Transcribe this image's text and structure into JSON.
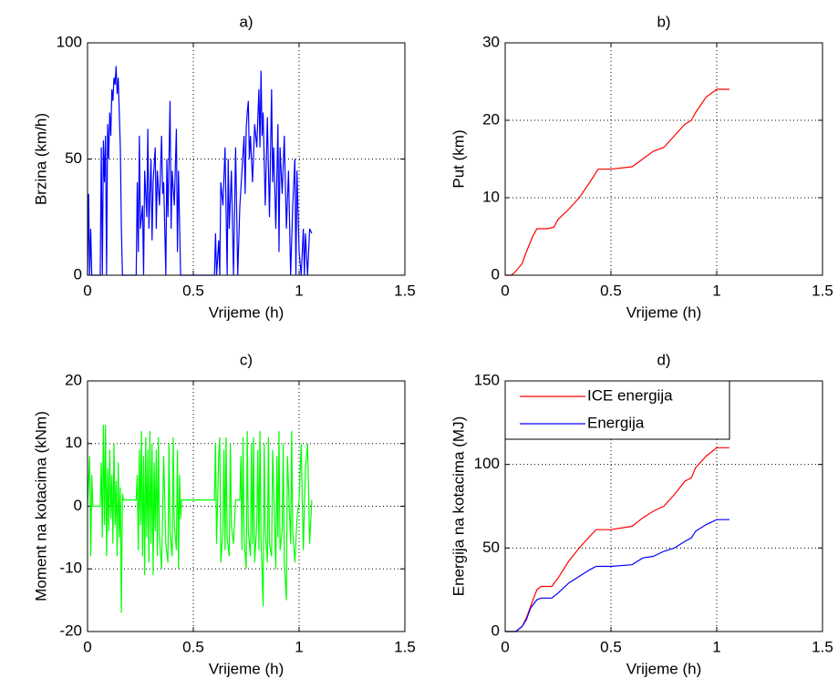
{
  "chart_data": [
    {
      "type": "line",
      "title": "a)",
      "x_label": "Vrijeme (h)",
      "y_label": "Brzina (km/h)",
      "xlim": [
        0,
        1.5
      ],
      "xticks": [
        0,
        0.5,
        1,
        1.5
      ],
      "ylim": [
        0,
        100
      ],
      "yticks": [
        0,
        50,
        100
      ],
      "grid": true,
      "color": "#0000ff",
      "x": [
        0,
        0.005,
        0.01,
        0.015,
        0.02,
        0.06,
        0.065,
        0.07,
        0.075,
        0.08,
        0.085,
        0.09,
        0.095,
        0.1,
        0.105,
        0.11,
        0.115,
        0.12,
        0.125,
        0.13,
        0.135,
        0.14,
        0.145,
        0.15,
        0.155,
        0.16,
        0.165,
        0.23,
        0.235,
        0.24,
        0.245,
        0.25,
        0.26,
        0.265,
        0.27,
        0.28,
        0.285,
        0.29,
        0.3,
        0.305,
        0.31,
        0.32,
        0.325,
        0.33,
        0.34,
        0.35,
        0.355,
        0.36,
        0.37,
        0.375,
        0.38,
        0.39,
        0.395,
        0.4,
        0.41,
        0.42,
        0.425,
        0.43,
        0.44,
        0.6,
        0.605,
        0.61,
        0.62,
        0.625,
        0.63,
        0.64,
        0.65,
        0.66,
        0.665,
        0.67,
        0.68,
        0.69,
        0.7,
        0.71,
        0.72,
        0.73,
        0.74,
        0.745,
        0.75,
        0.755,
        0.76,
        0.765,
        0.77,
        0.78,
        0.79,
        0.8,
        0.81,
        0.815,
        0.82,
        0.825,
        0.83,
        0.84,
        0.85,
        0.86,
        0.87,
        0.875,
        0.88,
        0.89,
        0.9,
        0.905,
        0.91,
        0.92,
        0.93,
        0.94,
        0.95,
        0.96,
        0.97,
        0.98,
        0.985,
        0.99,
        1.0,
        1.01,
        1.02,
        1.025,
        1.03,
        1.04,
        1.05,
        1.06
      ],
      "values": [
        0,
        35,
        0,
        20,
        0,
        0,
        55,
        0,
        58,
        40,
        60,
        0,
        65,
        50,
        70,
        60,
        80,
        75,
        85,
        82,
        90,
        78,
        85,
        70,
        55,
        20,
        0,
        0,
        40,
        10,
        60,
        20,
        30,
        0,
        45,
        25,
        63,
        20,
        50,
        15,
        40,
        55,
        20,
        45,
        30,
        60,
        35,
        40,
        0,
        50,
        25,
        75,
        20,
        45,
        30,
        63,
        10,
        45,
        0,
        0,
        18,
        0,
        15,
        0,
        40,
        30,
        55,
        0,
        50,
        20,
        45,
        0,
        55,
        0,
        30,
        45,
        60,
        35,
        63,
        70,
        75,
        50,
        60,
        40,
        65,
        55,
        80,
        55,
        88,
        60,
        70,
        30,
        68,
        25,
        80,
        40,
        55,
        20,
        65,
        10,
        55,
        35,
        60,
        20,
        45,
        0,
        30,
        50,
        0,
        45,
        10,
        0,
        20,
        0,
        18,
        0,
        20,
        18
      ]
    },
    {
      "type": "line",
      "title": "b)",
      "x_label": "Vrijeme (h)",
      "y_label": "Put (km)",
      "xlim": [
        0,
        1.5
      ],
      "xticks": [
        0,
        0.5,
        1,
        1.5
      ],
      "ylim": [
        0,
        30
      ],
      "yticks": [
        0,
        10,
        20,
        30
      ],
      "grid": true,
      "color": "#ff0000",
      "x": [
        0,
        0.03,
        0.05,
        0.08,
        0.1,
        0.13,
        0.15,
        0.2,
        0.23,
        0.25,
        0.3,
        0.35,
        0.4,
        0.44,
        0.5,
        0.6,
        0.65,
        0.7,
        0.75,
        0.8,
        0.85,
        0.88,
        0.9,
        0.95,
        1.0,
        1.06
      ],
      "values": [
        0,
        0,
        0.5,
        1.5,
        3,
        5,
        6,
        6,
        6.2,
        7.2,
        8.5,
        10,
        12,
        13.7,
        13.7,
        14,
        15,
        16,
        16.5,
        18,
        19.5,
        20,
        21,
        23,
        24,
        24
      ]
    },
    {
      "type": "line",
      "title": "c)",
      "x_label": "Vrijeme (h)",
      "y_label": "Moment na kotacima (kNm)",
      "xlim": [
        0,
        1.5
      ],
      "xticks": [
        0,
        0.5,
        1,
        1.5
      ],
      "ylim": [
        -20,
        20
      ],
      "yticks": [
        -20,
        -10,
        0,
        10,
        20
      ],
      "grid": true,
      "color": "#00ff00",
      "x": [
        0,
        0.01,
        0.015,
        0.02,
        0.025,
        0.06,
        0.065,
        0.07,
        0.075,
        0.08,
        0.085,
        0.09,
        0.095,
        0.1,
        0.105,
        0.11,
        0.115,
        0.12,
        0.125,
        0.13,
        0.135,
        0.14,
        0.145,
        0.15,
        0.155,
        0.16,
        0.165,
        0.17,
        0.23,
        0.235,
        0.24,
        0.245,
        0.25,
        0.255,
        0.26,
        0.265,
        0.27,
        0.275,
        0.28,
        0.285,
        0.29,
        0.295,
        0.3,
        0.305,
        0.31,
        0.315,
        0.32,
        0.325,
        0.33,
        0.335,
        0.34,
        0.35,
        0.36,
        0.37,
        0.38,
        0.385,
        0.39,
        0.4,
        0.405,
        0.41,
        0.42,
        0.425,
        0.43,
        0.435,
        0.44,
        0.445,
        0.6,
        0.605,
        0.61,
        0.62,
        0.625,
        0.63,
        0.64,
        0.645,
        0.65,
        0.655,
        0.66,
        0.67,
        0.675,
        0.68,
        0.69,
        0.7,
        0.72,
        0.725,
        0.73,
        0.735,
        0.74,
        0.75,
        0.755,
        0.76,
        0.77,
        0.775,
        0.78,
        0.785,
        0.79,
        0.8,
        0.805,
        0.81,
        0.815,
        0.82,
        0.83,
        0.835,
        0.84,
        0.85,
        0.855,
        0.86,
        0.87,
        0.875,
        0.89,
        0.895,
        0.9,
        0.905,
        0.91,
        0.92,
        0.925,
        0.93,
        0.94,
        0.945,
        0.96,
        0.965,
        0.97,
        0.98,
        0.99,
        1.0,
        1.01,
        1.02,
        1.03,
        1.04,
        1.05,
        1.06
      ],
      "values": [
        0,
        8,
        -8,
        5,
        0,
        0,
        7,
        -5,
        13,
        -3,
        13,
        -8,
        6,
        -4,
        9,
        -2,
        5,
        -6,
        10,
        -3,
        4,
        -8,
        7,
        -5,
        3,
        -17,
        2,
        1,
        1,
        5,
        -7,
        9,
        -3,
        12,
        -8,
        8,
        -11,
        11,
        -5,
        9,
        -9,
        12,
        -6,
        10,
        -11,
        7,
        -4,
        9,
        -8,
        11,
        -5,
        -10,
        8,
        -6,
        -9,
        10,
        -4,
        -8,
        11,
        -3,
        -7,
        9,
        -10,
        5,
        -2,
        1,
        1,
        10,
        -6,
        8,
        11,
        -9,
        -4,
        9,
        -7,
        11,
        -5,
        -8,
        10,
        -3,
        -6,
        1,
        1,
        8,
        -7,
        11,
        -5,
        -10,
        12,
        -4,
        -8,
        10,
        -6,
        11,
        -9,
        -3,
        9,
        -7,
        12,
        -5,
        -16,
        10,
        -4,
        -9,
        11,
        -6,
        -8,
        9,
        -10,
        8,
        -5,
        12,
        -7,
        -4,
        10,
        -9,
        -15,
        8,
        -6,
        12,
        -4,
        -9,
        -2,
        1,
        10,
        -7,
        6,
        10,
        -6,
        1
      ]
    },
    {
      "type": "line",
      "title": "d)",
      "x_label": "Vrijeme (h)",
      "y_label": "Energija na kotacima (MJ)",
      "xlim": [
        0,
        1.5
      ],
      "xticks": [
        0,
        0.5,
        1,
        1.5
      ],
      "ylim": [
        0,
        150
      ],
      "yticks": [
        0,
        50,
        100,
        150
      ],
      "grid": true,
      "legend": "upper left",
      "x": [
        0,
        0.05,
        0.08,
        0.1,
        0.12,
        0.15,
        0.17,
        0.22,
        0.25,
        0.3,
        0.35,
        0.4,
        0.43,
        0.5,
        0.6,
        0.65,
        0.7,
        0.75,
        0.8,
        0.85,
        0.88,
        0.9,
        0.95,
        1.0,
        1.06
      ],
      "series": [
        {
          "name": "ICE energija",
          "color": "#ff0000",
          "values": [
            0,
            0,
            3,
            8,
            15,
            25,
            27,
            27,
            32,
            42,
            50,
            57,
            61,
            61,
            63,
            68,
            72,
            75,
            82,
            90,
            92,
            98,
            105,
            110,
            110
          ]
        },
        {
          "name": "Energija",
          "color": "#0000ff",
          "values": [
            0,
            0,
            3,
            7,
            14,
            19,
            20,
            20,
            23,
            29,
            33,
            37,
            39,
            39,
            40,
            44,
            45,
            48,
            50,
            54,
            56,
            60,
            64,
            67,
            67
          ]
        }
      ]
    }
  ]
}
